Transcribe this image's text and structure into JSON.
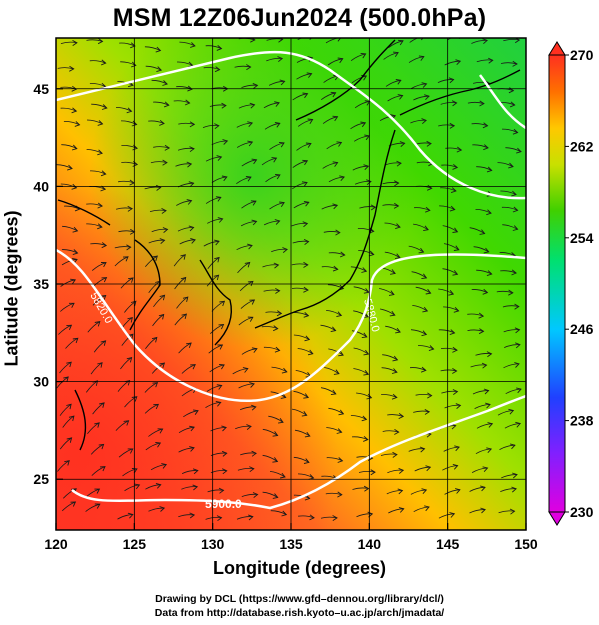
{
  "title": "MSM 12Z06Jun2024 (500.0hPa)",
  "x_axis": {
    "label": "Longitude (degrees)",
    "min": 120,
    "max": 150,
    "ticks": [
      "120",
      "125",
      "130",
      "135",
      "140",
      "145",
      "150"
    ]
  },
  "y_axis": {
    "label": "Latitude  (degrees)",
    "min": 22.4,
    "max": 47.6,
    "ticks": [
      "25",
      "30",
      "35",
      "40",
      "45"
    ]
  },
  "colorbar": {
    "min": 230,
    "max": 270,
    "ticks": [
      "270",
      "262",
      "254",
      "246",
      "238",
      "230"
    ],
    "stops": [
      "#e000e0",
      "#2020ff",
      "#00d0ff",
      "#00e070",
      "#40d000",
      "#b0e000",
      "#ffd000",
      "#ff7000",
      "#ff3020"
    ]
  },
  "contour_labels": [
    "5820.0",
    "5880.0",
    "5900.0"
  ],
  "credits": {
    "line1": "Drawing by DCL (https://www.gfd–dennou.org/library/dcl/)",
    "line2": "Data from http://database.rish.kyoto–u.ac.jp/arch/jmadata/"
  }
}
